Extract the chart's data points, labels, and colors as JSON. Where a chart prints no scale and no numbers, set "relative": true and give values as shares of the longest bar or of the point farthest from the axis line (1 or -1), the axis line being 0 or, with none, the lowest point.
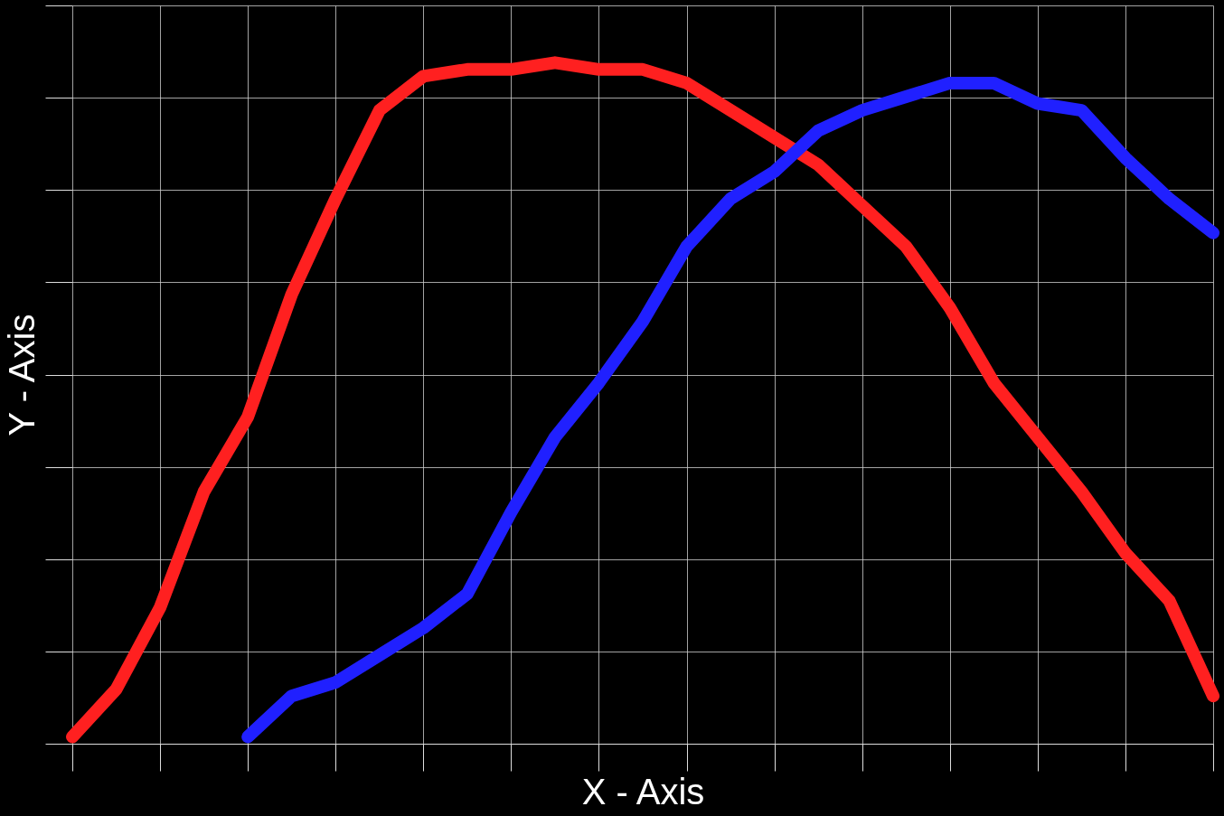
{
  "chart_data": {
    "type": "line",
    "relative": true,
    "xlabel": "X - Axis",
    "ylabel": "Y - Axis",
    "grid": true,
    "line_style": "solid",
    "categories": [
      null,
      null,
      null,
      null,
      null,
      null,
      null,
      null,
      null,
      null,
      null,
      null,
      null,
      null,
      null,
      null,
      null,
      null,
      null,
      null,
      null,
      null,
      null,
      null,
      null,
      null,
      null
    ],
    "series": [
      {
        "color": "#ff2020",
        "values": [
          0.01,
          0.08,
          0.2,
          0.37,
          0.48,
          0.66,
          0.8,
          0.93,
          0.98,
          0.99,
          0.99,
          1,
          0.99,
          0.99,
          0.97,
          0.93,
          0.89,
          0.85,
          0.79,
          0.73,
          0.64,
          0.53,
          0.45,
          0.37,
          0.28,
          0.21,
          0.07
        ]
      },
      {
        "color": "#2020ff",
        "values": [
          null,
          null,
          null,
          null,
          0.01,
          0.07,
          0.09,
          0.13,
          0.17,
          0.22,
          0.34,
          0.45,
          0.53,
          0.62,
          0.73,
          0.8,
          0.84,
          0.9,
          0.93,
          0.95,
          0.97,
          0.97,
          0.94,
          0.93,
          0.86,
          0.8,
          0.75
        ]
      }
    ]
  }
}
